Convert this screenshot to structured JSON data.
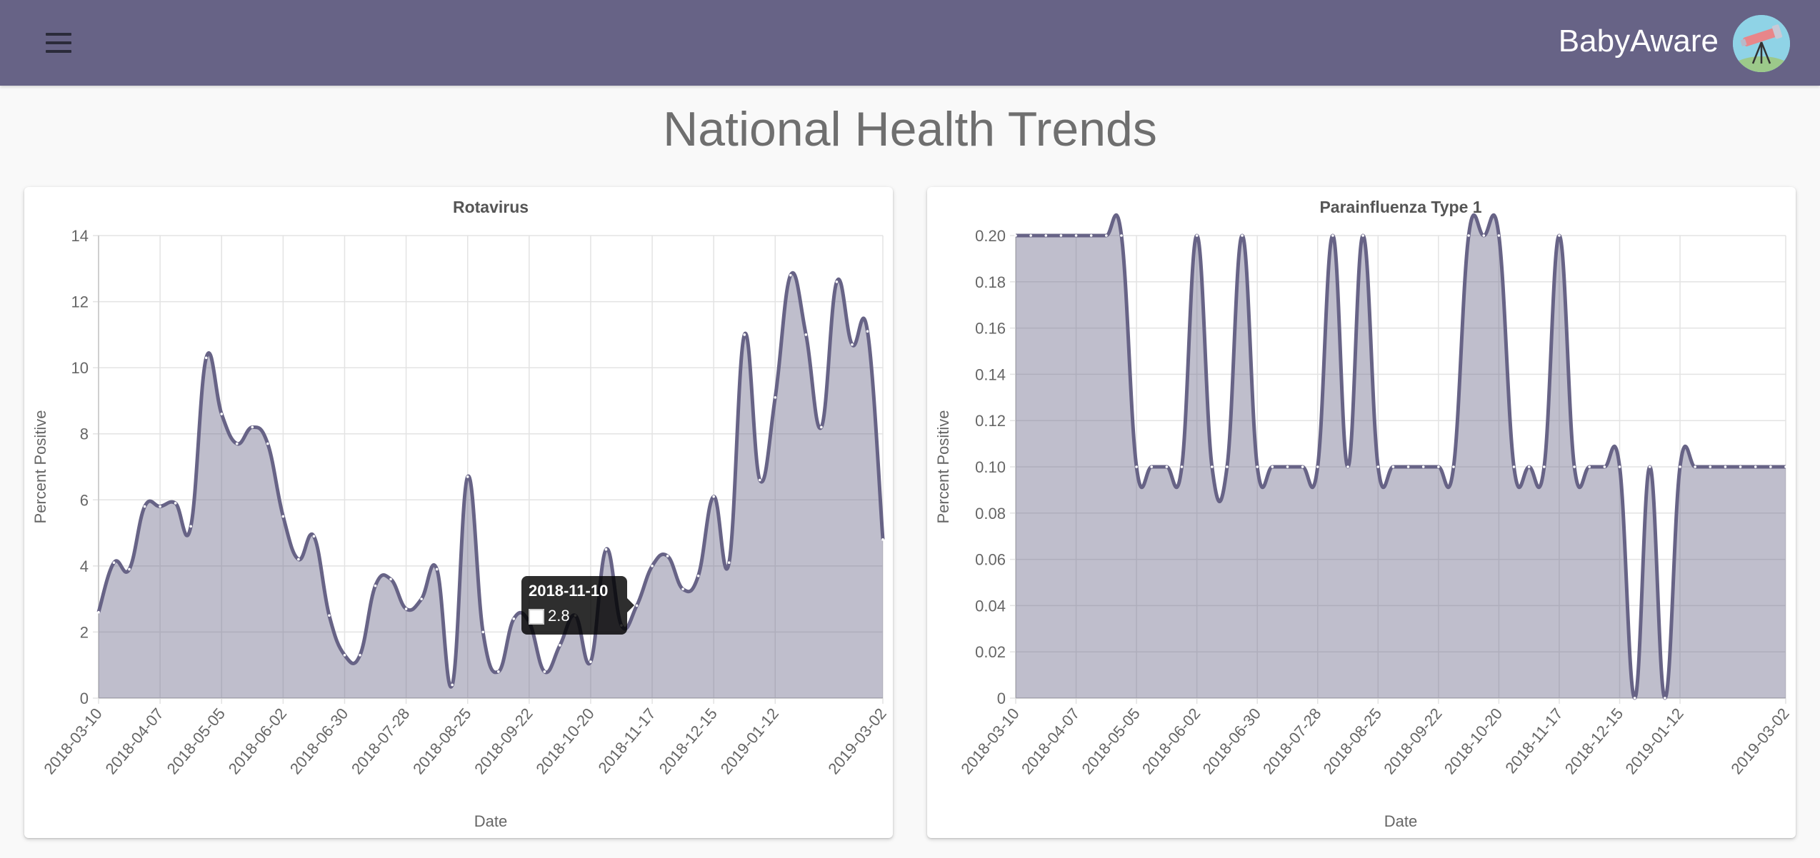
{
  "header": {
    "brand": "BabyAware",
    "menu_icon": "hamburger-menu-icon",
    "avatar_icon": "telescope-icon"
  },
  "page": {
    "title": "National Health Trends"
  },
  "colors": {
    "header_bg": "#676386",
    "line": "#676386",
    "fill": "rgba(103,99,134,0.42)"
  },
  "chart_data": [
    {
      "type": "area",
      "title": "Rotavirus",
      "xlabel": "Date",
      "ylabel": "Percent Positive",
      "ylim": [
        0,
        14
      ],
      "yticks": [
        "0",
        "2",
        "4",
        "6",
        "8",
        "10",
        "12",
        "14"
      ],
      "xtick_labels": [
        "2018-03-10",
        "2018-04-07",
        "2018-05-05",
        "2018-06-02",
        "2018-06-30",
        "2018-07-28",
        "2018-08-25",
        "2018-09-22",
        "2018-10-20",
        "2018-11-17",
        "2018-12-15",
        "2019-01-12",
        "2019-03-02"
      ],
      "values": [
        2.6,
        4.1,
        3.9,
        5.8,
        5.8,
        5.9,
        5.2,
        10.3,
        8.6,
        7.7,
        8.2,
        7.7,
        5.5,
        4.2,
        4.9,
        2.5,
        1.3,
        1.3,
        3.4,
        3.6,
        2.7,
        3.0,
        3.9,
        0.4,
        6.7,
        2.0,
        0.8,
        2.4,
        2.3,
        0.8,
        1.6,
        2.5,
        1.1,
        4.5,
        2.2,
        2.8,
        4.0,
        4.3,
        3.3,
        3.7,
        6.1,
        4.1,
        11.0,
        6.6,
        9.1,
        12.8,
        11.0,
        8.2,
        12.6,
        10.7,
        11.1,
        4.8
      ],
      "tooltip": {
        "date": "2018-11-10",
        "value": "2.8"
      }
    },
    {
      "type": "area",
      "title": "Parainfluenza Type 1",
      "xlabel": "Date",
      "ylabel": "Percent Positive",
      "ylim": [
        0,
        0.2
      ],
      "yticks": [
        "0",
        "0.02",
        "0.04",
        "0.06",
        "0.08",
        "0.10",
        "0.12",
        "0.14",
        "0.16",
        "0.18",
        "0.20"
      ],
      "xtick_labels": [
        "2018-03-10",
        "2018-04-07",
        "2018-05-05",
        "2018-06-02",
        "2018-06-30",
        "2018-07-28",
        "2018-08-25",
        "2018-09-22",
        "2018-10-20",
        "2018-11-17",
        "2018-12-15",
        "2019-01-12",
        "2019-03-02"
      ],
      "values": [
        0.2,
        0.2,
        0.2,
        0.2,
        0.2,
        0.2,
        0.2,
        0.2,
        0.1,
        0.1,
        0.1,
        0.1,
        0.2,
        0.1,
        0.1,
        0.2,
        0.1,
        0.1,
        0.1,
        0.1,
        0.1,
        0.2,
        0.1,
        0.2,
        0.1,
        0.1,
        0.1,
        0.1,
        0.1,
        0.1,
        0.2,
        0.2,
        0.2,
        0.1,
        0.1,
        0.1,
        0.2,
        0.1,
        0.1,
        0.1,
        0.1,
        0.0,
        0.1,
        0.0,
        0.1,
        0.1,
        0.1,
        0.1,
        0.1,
        0.1,
        0.1,
        0.1
      ]
    }
  ]
}
